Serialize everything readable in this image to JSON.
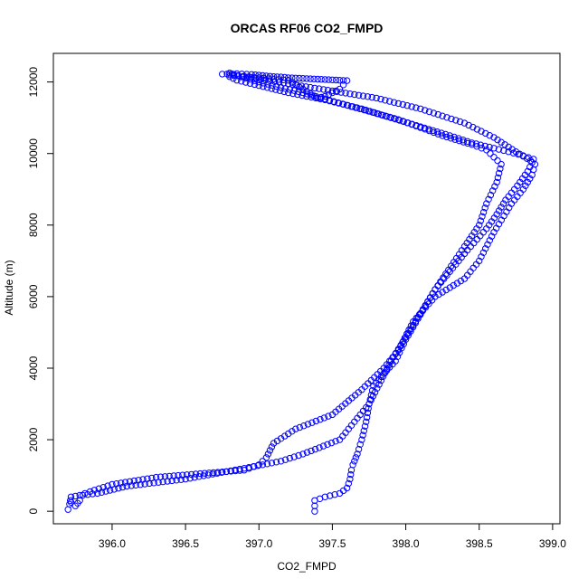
{
  "chart_data": {
    "type": "scatter",
    "title": "ORCAS RF06 CO2_FMPD",
    "xlabel": "CO2_FMPD",
    "ylabel": "Altitude (m)",
    "xlim": [
      395.6,
      399.05
    ],
    "ylim": [
      -350,
      12800
    ],
    "xticks": [
      "396.0",
      "396.5",
      "397.0",
      "397.5",
      "398.0",
      "398.5",
      "399.0"
    ],
    "yticks": [
      "0",
      "2000",
      "4000",
      "6000",
      "8000",
      "10000",
      "12000"
    ],
    "grid": false,
    "legend": "none",
    "marker_color": "#0000ff",
    "marker": "open-circle",
    "series": [
      {
        "points": [
          [
            397.38,
            0
          ],
          [
            397.38,
            150
          ],
          [
            397.38,
            300
          ],
          [
            397.45,
            400
          ],
          [
            397.55,
            500
          ],
          [
            397.6,
            650
          ],
          [
            397.62,
            900
          ],
          [
            397.63,
            1150
          ],
          [
            397.64,
            1300
          ],
          [
            397.67,
            1600
          ],
          [
            397.7,
            2000
          ],
          [
            397.73,
            2500
          ],
          [
            397.75,
            3000
          ],
          [
            397.78,
            3500
          ],
          [
            397.85,
            3850
          ],
          [
            397.93,
            4200
          ],
          [
            398.0,
            4800
          ],
          [
            398.1,
            5500
          ],
          [
            398.2,
            6200
          ],
          [
            398.3,
            6700
          ],
          [
            398.42,
            7300
          ],
          [
            398.55,
            7900
          ],
          [
            398.62,
            8300
          ],
          [
            398.68,
            8700
          ],
          [
            398.76,
            9100
          ],
          [
            398.83,
            9500
          ],
          [
            398.86,
            9750
          ],
          [
            398.87,
            9840
          ],
          [
            398.8,
            9940
          ],
          [
            398.7,
            10050
          ],
          [
            398.6,
            10150
          ],
          [
            398.45,
            10300
          ],
          [
            398.3,
            10500
          ],
          [
            398.1,
            10750
          ],
          [
            397.9,
            11000
          ],
          [
            397.7,
            11250
          ],
          [
            397.45,
            11500
          ],
          [
            397.2,
            11700
          ],
          [
            397.0,
            11900
          ],
          [
            396.85,
            12050
          ],
          [
            396.8,
            12150
          ]
        ]
      },
      {
        "points": [
          [
            396.8,
            12200
          ],
          [
            396.95,
            12120
          ],
          [
            397.2,
            11950
          ],
          [
            397.5,
            11750
          ],
          [
            397.8,
            11550
          ],
          [
            398.1,
            11250
          ],
          [
            398.4,
            10850
          ],
          [
            398.6,
            10450
          ],
          [
            398.75,
            10050
          ],
          [
            398.85,
            9800
          ],
          [
            398.88,
            9700
          ],
          [
            398.86,
            9400
          ],
          [
            398.8,
            9000
          ],
          [
            398.72,
            8600
          ],
          [
            398.6,
            7800
          ],
          [
            398.5,
            7000
          ],
          [
            398.4,
            6500
          ],
          [
            398.2,
            6000
          ],
          [
            398.05,
            5300
          ],
          [
            397.95,
            4500
          ],
          [
            397.85,
            4000
          ],
          [
            397.7,
            3400
          ],
          [
            397.5,
            2700
          ],
          [
            397.25,
            2300
          ],
          [
            397.1,
            1900
          ],
          [
            397.05,
            1500
          ],
          [
            397.0,
            1300
          ],
          [
            396.9,
            1150
          ],
          [
            396.6,
            1050
          ],
          [
            396.3,
            950
          ],
          [
            396.0,
            750
          ],
          [
            395.85,
            550
          ],
          [
            395.78,
            450
          ],
          [
            395.72,
            400
          ],
          [
            395.71,
            200
          ],
          [
            395.7,
            50
          ]
        ]
      },
      {
        "points": [
          [
            395.72,
            250
          ],
          [
            395.75,
            150
          ],
          [
            395.78,
            300
          ],
          [
            395.8,
            450
          ],
          [
            395.9,
            500
          ],
          [
            396.1,
            700
          ],
          [
            396.5,
            900
          ],
          [
            396.9,
            1200
          ],
          [
            397.15,
            1400
          ],
          [
            397.3,
            1600
          ],
          [
            397.55,
            2000
          ],
          [
            397.75,
            3000
          ],
          [
            397.9,
            4200
          ],
          [
            398.05,
            5200
          ],
          [
            398.2,
            6200
          ],
          [
            398.4,
            7400
          ],
          [
            398.5,
            8000
          ],
          [
            398.55,
            8600
          ],
          [
            398.62,
            9200
          ],
          [
            398.65,
            9700
          ],
          [
            398.6,
            9900
          ],
          [
            398.55,
            10100
          ],
          [
            398.45,
            10250
          ],
          [
            398.25,
            10500
          ],
          [
            397.95,
            10950
          ],
          [
            397.6,
            11350
          ],
          [
            397.3,
            11700
          ],
          [
            397.0,
            12000
          ],
          [
            396.8,
            12250
          ]
        ]
      },
      {
        "points": [
          [
            396.75,
            12220
          ],
          [
            396.85,
            12230
          ],
          [
            396.95,
            12210
          ],
          [
            397.0,
            12190
          ],
          [
            397.05,
            12170
          ],
          [
            397.1,
            12150
          ],
          [
            397.15,
            12140
          ],
          [
            397.2,
            12120
          ],
          [
            397.25,
            12110
          ],
          [
            397.3,
            12100
          ],
          [
            397.35,
            12090
          ],
          [
            397.4,
            12080
          ],
          [
            397.45,
            12070
          ],
          [
            397.5,
            12060
          ],
          [
            397.55,
            12050
          ],
          [
            397.6,
            12040
          ],
          [
            397.55,
            11800
          ],
          [
            397.5,
            11700
          ],
          [
            397.45,
            11600
          ],
          [
            397.4,
            11550
          ],
          [
            397.2,
            12050
          ],
          [
            397.1,
            12080
          ],
          [
            397.0,
            12120
          ],
          [
            396.9,
            12160
          ]
        ]
      }
    ]
  }
}
